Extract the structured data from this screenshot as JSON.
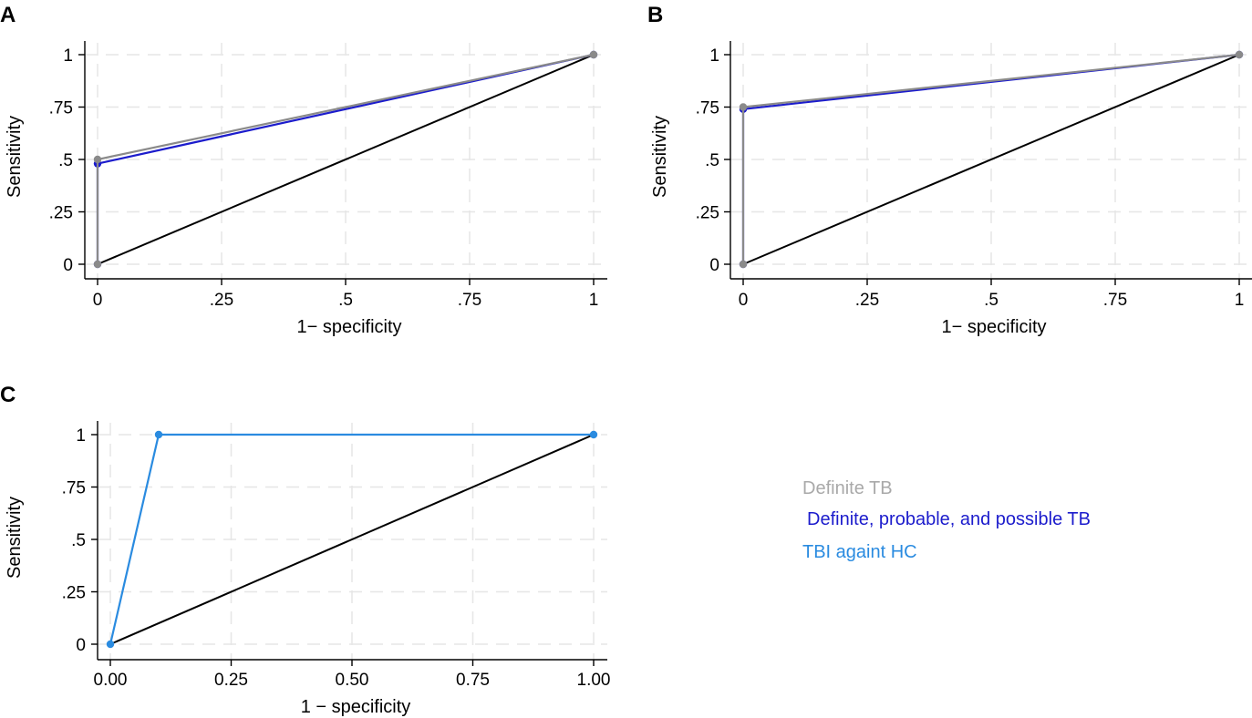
{
  "colors": {
    "definite": "#8a8a8a",
    "all_tb": "#1c1ccc",
    "tbi": "#2a8be0",
    "diagonal": "#000000",
    "grid": "#e6e6e6",
    "axis": "#000000",
    "legend_definite": "#a9a9a9"
  },
  "legend": {
    "definite_label": "Definite TB",
    "all_tb_label": "Definite, probable, and possible TB",
    "tbi_label": "TBI againt HC"
  },
  "chart_data": [
    {
      "panel": "A",
      "type": "line",
      "xlabel": "1− specificity",
      "ylabel": "Sensitivity",
      "xlim": [
        0,
        1
      ],
      "ylim": [
        0,
        1
      ],
      "grid": true,
      "x_ticks": [
        0,
        0.25,
        0.5,
        0.75,
        1
      ],
      "x_tick_labels": [
        "0",
        ".25",
        ".5",
        ".75",
        "1"
      ],
      "y_ticks": [
        0,
        0.25,
        0.5,
        0.75,
        1
      ],
      "y_tick_labels": [
        "0",
        ".25",
        ".5",
        ".75",
        "1"
      ],
      "reference_line": {
        "x": [
          0,
          1
        ],
        "y": [
          0,
          1
        ]
      },
      "series": [
        {
          "name": "Definite, probable, and possible TB",
          "color_key": "all_tb",
          "x": [
            0,
            0,
            1
          ],
          "y": [
            0,
            0.48,
            1
          ]
        },
        {
          "name": "Definite TB",
          "color_key": "definite",
          "x": [
            0,
            0,
            1
          ],
          "y": [
            0,
            0.5,
            1
          ]
        }
      ]
    },
    {
      "panel": "B",
      "type": "line",
      "xlabel": "1− specificity",
      "ylabel": "Sensitivity",
      "xlim": [
        0,
        1
      ],
      "ylim": [
        0,
        1
      ],
      "grid": true,
      "x_ticks": [
        0,
        0.25,
        0.5,
        0.75,
        1
      ],
      "x_tick_labels": [
        "0",
        ".25",
        ".5",
        ".75",
        "1"
      ],
      "y_ticks": [
        0,
        0.25,
        0.5,
        0.75,
        1
      ],
      "y_tick_labels": [
        "0",
        ".25",
        ".5",
        ".75",
        "1"
      ],
      "reference_line": {
        "x": [
          0,
          1
        ],
        "y": [
          0,
          1
        ]
      },
      "series": [
        {
          "name": "Definite, probable, and possible TB",
          "color_key": "all_tb",
          "x": [
            0,
            0,
            1
          ],
          "y": [
            0,
            0.74,
            1
          ]
        },
        {
          "name": "Definite TB",
          "color_key": "definite",
          "x": [
            0,
            0,
            1
          ],
          "y": [
            0,
            0.75,
            1
          ]
        }
      ]
    },
    {
      "panel": "C",
      "type": "line",
      "xlabel": "1 − specificity",
      "ylabel": "Sensitivity",
      "xlim": [
        0,
        1
      ],
      "ylim": [
        0,
        1
      ],
      "grid": true,
      "x_ticks": [
        0,
        0.25,
        0.5,
        0.75,
        1
      ],
      "x_tick_labels": [
        "0.00",
        "0.25",
        "0.50",
        "0.75",
        "1.00"
      ],
      "y_ticks": [
        0,
        0.25,
        0.5,
        0.75,
        1
      ],
      "y_tick_labels": [
        "0",
        ".25",
        ".5",
        ".75",
        "1"
      ],
      "reference_line": {
        "x": [
          0,
          1
        ],
        "y": [
          0,
          1
        ]
      },
      "series": [
        {
          "name": "TBI againt HC",
          "color_key": "tbi",
          "x": [
            0,
            0.1,
            1
          ],
          "y": [
            0,
            1,
            1
          ]
        }
      ]
    }
  ]
}
